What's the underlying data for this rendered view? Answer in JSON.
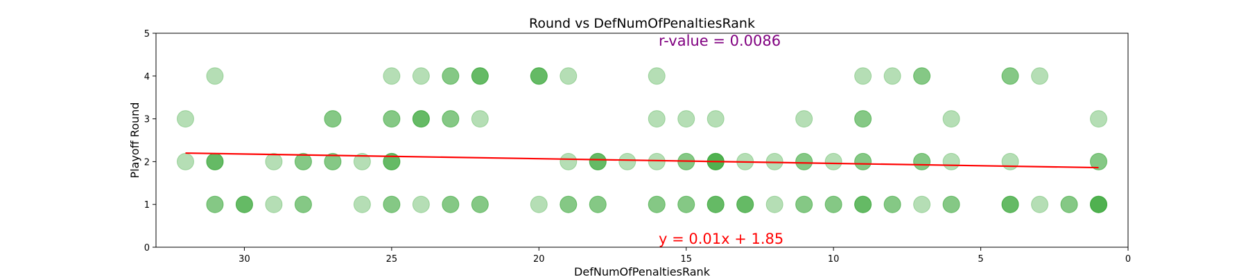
{
  "chart_data": {
    "type": "scatter",
    "title": "Round vs DefNumOfPenaltiesRank",
    "xlabel": "DefNumOfPenaltiesRank",
    "ylabel": "Playoff Round",
    "xlim": [
      33,
      0
    ],
    "ylim": [
      0,
      5
    ],
    "x_ticks": [
      30,
      25,
      20,
      15,
      10,
      5,
      0
    ],
    "y_ticks": [
      0,
      1,
      2,
      3,
      4,
      5
    ],
    "grid": false,
    "point_color": "#2ca02c",
    "line_color": "#ff0000",
    "annotation_color": "#800080",
    "r_value_text": "r-value = 0.0086",
    "equation_text": "y = 0.01x + 1.85",
    "regression": {
      "x": [
        32,
        1
      ],
      "y": [
        2.2,
        1.86
      ]
    },
    "points": [
      {
        "x": 32,
        "y": 3
      },
      {
        "x": 32,
        "y": 2
      },
      {
        "x": 31,
        "y": 4
      },
      {
        "x": 31,
        "y": 2
      },
      {
        "x": 31,
        "y": 2
      },
      {
        "x": 31,
        "y": 2
      },
      {
        "x": 31,
        "y": 1
      },
      {
        "x": 31,
        "y": 1
      },
      {
        "x": 30,
        "y": 1
      },
      {
        "x": 30,
        "y": 1
      },
      {
        "x": 30,
        "y": 1
      },
      {
        "x": 29,
        "y": 2
      },
      {
        "x": 29,
        "y": 1
      },
      {
        "x": 28,
        "y": 2
      },
      {
        "x": 28,
        "y": 2
      },
      {
        "x": 28,
        "y": 1
      },
      {
        "x": 28,
        "y": 1
      },
      {
        "x": 27,
        "y": 3
      },
      {
        "x": 27,
        "y": 3
      },
      {
        "x": 27,
        "y": 2
      },
      {
        "x": 27,
        "y": 2
      },
      {
        "x": 26,
        "y": 2
      },
      {
        "x": 26,
        "y": 1
      },
      {
        "x": 25,
        "y": 4
      },
      {
        "x": 25,
        "y": 3
      },
      {
        "x": 25,
        "y": 3
      },
      {
        "x": 25,
        "y": 2
      },
      {
        "x": 25,
        "y": 2
      },
      {
        "x": 25,
        "y": 2
      },
      {
        "x": 25,
        "y": 1
      },
      {
        "x": 25,
        "y": 1
      },
      {
        "x": 24,
        "y": 4
      },
      {
        "x": 24,
        "y": 3
      },
      {
        "x": 24,
        "y": 3
      },
      {
        "x": 24,
        "y": 3
      },
      {
        "x": 24,
        "y": 1
      },
      {
        "x": 23,
        "y": 4
      },
      {
        "x": 23,
        "y": 4
      },
      {
        "x": 23,
        "y": 3
      },
      {
        "x": 23,
        "y": 3
      },
      {
        "x": 23,
        "y": 1
      },
      {
        "x": 23,
        "y": 1
      },
      {
        "x": 22,
        "y": 4
      },
      {
        "x": 22,
        "y": 4
      },
      {
        "x": 22,
        "y": 4
      },
      {
        "x": 22,
        "y": 3
      },
      {
        "x": 22,
        "y": 1
      },
      {
        "x": 22,
        "y": 1
      },
      {
        "x": 20,
        "y": 4
      },
      {
        "x": 20,
        "y": 4
      },
      {
        "x": 20,
        "y": 4
      },
      {
        "x": 20,
        "y": 1
      },
      {
        "x": 19,
        "y": 4
      },
      {
        "x": 19,
        "y": 2
      },
      {
        "x": 19,
        "y": 1
      },
      {
        "x": 19,
        "y": 1
      },
      {
        "x": 18,
        "y": 2
      },
      {
        "x": 18,
        "y": 2
      },
      {
        "x": 18,
        "y": 2
      },
      {
        "x": 18,
        "y": 1
      },
      {
        "x": 18,
        "y": 1
      },
      {
        "x": 17,
        "y": 2
      },
      {
        "x": 16,
        "y": 4
      },
      {
        "x": 16,
        "y": 3
      },
      {
        "x": 16,
        "y": 2
      },
      {
        "x": 16,
        "y": 1
      },
      {
        "x": 16,
        "y": 1
      },
      {
        "x": 15,
        "y": 3
      },
      {
        "x": 15,
        "y": 2
      },
      {
        "x": 15,
        "y": 2
      },
      {
        "x": 15,
        "y": 1
      },
      {
        "x": 15,
        "y": 1
      },
      {
        "x": 14,
        "y": 3
      },
      {
        "x": 14,
        "y": 2
      },
      {
        "x": 14,
        "y": 2
      },
      {
        "x": 14,
        "y": 2
      },
      {
        "x": 14,
        "y": 2
      },
      {
        "x": 14,
        "y": 1
      },
      {
        "x": 14,
        "y": 1
      },
      {
        "x": 14,
        "y": 1
      },
      {
        "x": 13,
        "y": 2
      },
      {
        "x": 13,
        "y": 1
      },
      {
        "x": 13,
        "y": 1
      },
      {
        "x": 13,
        "y": 1
      },
      {
        "x": 12,
        "y": 2
      },
      {
        "x": 12,
        "y": 1
      },
      {
        "x": 11,
        "y": 3
      },
      {
        "x": 11,
        "y": 2
      },
      {
        "x": 11,
        "y": 2
      },
      {
        "x": 11,
        "y": 1
      },
      {
        "x": 11,
        "y": 1
      },
      {
        "x": 10,
        "y": 2
      },
      {
        "x": 10,
        "y": 1
      },
      {
        "x": 10,
        "y": 1
      },
      {
        "x": 9,
        "y": 4
      },
      {
        "x": 9,
        "y": 3
      },
      {
        "x": 9,
        "y": 3
      },
      {
        "x": 9,
        "y": 2
      },
      {
        "x": 9,
        "y": 2
      },
      {
        "x": 9,
        "y": 1
      },
      {
        "x": 9,
        "y": 1
      },
      {
        "x": 9,
        "y": 1
      },
      {
        "x": 8,
        "y": 4
      },
      {
        "x": 8,
        "y": 1
      },
      {
        "x": 8,
        "y": 1
      },
      {
        "x": 7,
        "y": 4
      },
      {
        "x": 7,
        "y": 4
      },
      {
        "x": 7,
        "y": 2
      },
      {
        "x": 7,
        "y": 2
      },
      {
        "x": 7,
        "y": 1
      },
      {
        "x": 6,
        "y": 3
      },
      {
        "x": 6,
        "y": 2
      },
      {
        "x": 6,
        "y": 1
      },
      {
        "x": 6,
        "y": 1
      },
      {
        "x": 4,
        "y": 4
      },
      {
        "x": 4,
        "y": 4
      },
      {
        "x": 4,
        "y": 2
      },
      {
        "x": 4,
        "y": 1
      },
      {
        "x": 4,
        "y": 1
      },
      {
        "x": 4,
        "y": 1
      },
      {
        "x": 3,
        "y": 4
      },
      {
        "x": 3,
        "y": 1
      },
      {
        "x": 2,
        "y": 1
      },
      {
        "x": 2,
        "y": 1
      },
      {
        "x": 1,
        "y": 3
      },
      {
        "x": 1,
        "y": 2
      },
      {
        "x": 1,
        "y": 2
      },
      {
        "x": 1,
        "y": 1
      },
      {
        "x": 1,
        "y": 1
      },
      {
        "x": 1,
        "y": 1
      },
      {
        "x": 1,
        "y": 1
      }
    ]
  }
}
